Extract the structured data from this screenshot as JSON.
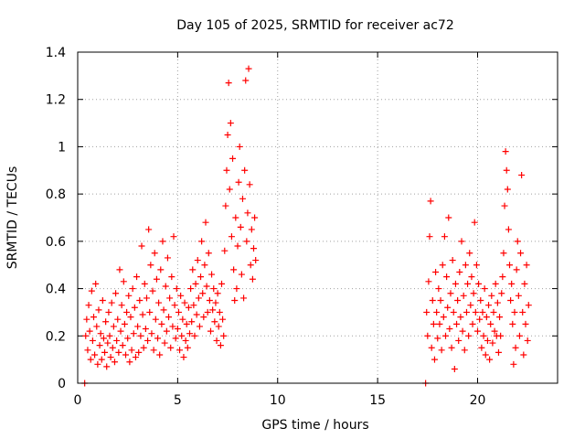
{
  "chart_data": {
    "type": "scatter",
    "title": "Day 105 of 2025, SRMTID for receiver ac72",
    "xlabel": "GPS time / hours",
    "ylabel": "SRMTID / TECUs",
    "xlim": [
      0,
      24
    ],
    "ylim": [
      0,
      1.4
    ],
    "grid": true,
    "marker": "+",
    "color": "#ff0000",
    "x_ticks": [
      {
        "value": 0,
        "label": "0"
      },
      {
        "value": 5,
        "label": "5"
      },
      {
        "value": 10,
        "label": "10"
      },
      {
        "value": 15,
        "label": "15"
      },
      {
        "value": 20,
        "label": "20"
      }
    ],
    "y_ticks": [
      {
        "value": 0,
        "label": "0"
      },
      {
        "value": 0.2,
        "label": "0.2"
      },
      {
        "value": 0.4,
        "label": "0.4"
      },
      {
        "value": 0.6,
        "label": "0.6"
      },
      {
        "value": 0.8,
        "label": "0.8"
      },
      {
        "value": 1.0,
        "label": "1"
      },
      {
        "value": 1.2,
        "label": "1.2"
      },
      {
        "value": 1.4,
        "label": "1.4"
      }
    ],
    "series": [
      {
        "name": "SRMTID",
        "points": [
          [
            0.35,
            0.0
          ],
          [
            0.4,
            0.2
          ],
          [
            0.45,
            0.27
          ],
          [
            0.5,
            0.14
          ],
          [
            0.55,
            0.33
          ],
          [
            0.6,
            0.22
          ],
          [
            0.65,
            0.1
          ],
          [
            0.7,
            0.39
          ],
          [
            0.75,
            0.18
          ],
          [
            0.8,
            0.28
          ],
          [
            0.85,
            0.12
          ],
          [
            0.9,
            0.42
          ],
          [
            0.95,
            0.24
          ],
          [
            1.0,
            0.08
          ],
          [
            1.05,
            0.31
          ],
          [
            1.1,
            0.16
          ],
          [
            1.15,
            0.21
          ],
          [
            1.2,
            0.1
          ],
          [
            1.25,
            0.35
          ],
          [
            1.3,
            0.19
          ],
          [
            1.35,
            0.13
          ],
          [
            1.4,
            0.26
          ],
          [
            1.45,
            0.07
          ],
          [
            1.5,
            0.17
          ],
          [
            1.55,
            0.3
          ],
          [
            1.6,
            0.2
          ],
          [
            1.65,
            0.11
          ],
          [
            1.7,
            0.34
          ],
          [
            1.75,
            0.15
          ],
          [
            1.8,
            0.24
          ],
          [
            1.85,
            0.09
          ],
          [
            1.9,
            0.38
          ],
          [
            1.95,
            0.18
          ],
          [
            2.0,
            0.27
          ],
          [
            2.05,
            0.13
          ],
          [
            2.1,
            0.48
          ],
          [
            2.15,
            0.22
          ],
          [
            2.2,
            0.33
          ],
          [
            2.25,
            0.16
          ],
          [
            2.3,
            0.43
          ],
          [
            2.35,
            0.25
          ],
          [
            2.4,
            0.12
          ],
          [
            2.45,
            0.3
          ],
          [
            2.5,
            0.19
          ],
          [
            2.55,
            0.37
          ],
          [
            2.6,
            0.09
          ],
          [
            2.65,
            0.28
          ],
          [
            2.7,
            0.14
          ],
          [
            2.75,
            0.4
          ],
          [
            2.8,
            0.21
          ],
          [
            2.85,
            0.32
          ],
          [
            2.9,
            0.11
          ],
          [
            2.95,
            0.45
          ],
          [
            3.0,
            0.24
          ],
          [
            3.05,
            0.13
          ],
          [
            3.1,
            0.35
          ],
          [
            3.15,
            0.2
          ],
          [
            3.2,
            0.58
          ],
          [
            3.25,
            0.29
          ],
          [
            3.3,
            0.15
          ],
          [
            3.35,
            0.42
          ],
          [
            3.4,
            0.23
          ],
          [
            3.45,
            0.36
          ],
          [
            3.5,
            0.18
          ],
          [
            3.55,
            0.65
          ],
          [
            3.6,
            0.3
          ],
          [
            3.65,
            0.5
          ],
          [
            3.7,
            0.21
          ],
          [
            3.75,
            0.39
          ],
          [
            3.8,
            0.14
          ],
          [
            3.85,
            0.55
          ],
          [
            3.9,
            0.27
          ],
          [
            3.95,
            0.44
          ],
          [
            4.0,
            0.19
          ],
          [
            4.05,
            0.34
          ],
          [
            4.1,
            0.12
          ],
          [
            4.15,
            0.48
          ],
          [
            4.2,
            0.25
          ],
          [
            4.25,
            0.6
          ],
          [
            4.3,
            0.31
          ],
          [
            4.35,
            0.17
          ],
          [
            4.4,
            0.41
          ],
          [
            4.45,
            0.22
          ],
          [
            4.5,
            0.53
          ],
          [
            4.55,
            0.28
          ],
          [
            4.6,
            0.36
          ],
          [
            4.65,
            0.15
          ],
          [
            4.7,
            0.45
          ],
          [
            4.75,
            0.24
          ],
          [
            4.8,
            0.62
          ],
          [
            4.85,
            0.33
          ],
          [
            4.9,
            0.19
          ],
          [
            4.95,
            0.4
          ],
          [
            5.0,
            0.23
          ],
          [
            5.05,
            0.3
          ],
          [
            5.1,
            0.14
          ],
          [
            5.15,
            0.37
          ],
          [
            5.2,
            0.2
          ],
          [
            5.25,
            0.27
          ],
          [
            5.3,
            0.11
          ],
          [
            5.35,
            0.34
          ],
          [
            5.4,
            0.18
          ],
          [
            5.45,
            0.25
          ],
          [
            5.5,
            0.15
          ],
          [
            5.55,
            0.32
          ],
          [
            5.6,
            0.21
          ],
          [
            5.65,
            0.4
          ],
          [
            5.7,
            0.26
          ],
          [
            5.75,
            0.48
          ],
          [
            5.8,
            0.33
          ],
          [
            5.85,
            0.2
          ],
          [
            5.9,
            0.42
          ],
          [
            5.95,
            0.29
          ],
          [
            6.0,
            0.52
          ],
          [
            6.05,
            0.36
          ],
          [
            6.1,
            0.24
          ],
          [
            6.15,
            0.45
          ],
          [
            6.2,
            0.6
          ],
          [
            6.25,
            0.38
          ],
          [
            6.3,
            0.28
          ],
          [
            6.35,
            0.5
          ],
          [
            6.4,
            0.68
          ],
          [
            6.45,
            0.41
          ],
          [
            6.5,
            0.3
          ],
          [
            6.55,
            0.55
          ],
          [
            6.6,
            0.35
          ],
          [
            6.65,
            0.22
          ],
          [
            6.7,
            0.46
          ],
          [
            6.75,
            0.31
          ],
          [
            6.8,
            0.4
          ],
          [
            6.85,
            0.26
          ],
          [
            6.9,
            0.34
          ],
          [
            6.95,
            0.18
          ],
          [
            7.0,
            0.38
          ],
          [
            7.05,
            0.24
          ],
          [
            7.1,
            0.3
          ],
          [
            7.15,
            0.16
          ],
          [
            7.2,
            0.42
          ],
          [
            7.25,
            0.27
          ],
          [
            7.3,
            0.2
          ],
          [
            7.35,
            0.56
          ],
          [
            7.4,
            0.75
          ],
          [
            7.45,
            0.9
          ],
          [
            7.5,
            1.05
          ],
          [
            7.55,
            1.27
          ],
          [
            7.6,
            0.82
          ],
          [
            7.65,
            1.1
          ],
          [
            7.7,
            0.62
          ],
          [
            7.75,
            0.95
          ],
          [
            7.8,
            0.48
          ],
          [
            7.85,
            0.35
          ],
          [
            7.9,
            0.7
          ],
          [
            7.95,
            0.4
          ],
          [
            8.0,
            0.58
          ],
          [
            8.05,
            0.85
          ],
          [
            8.1,
            1.0
          ],
          [
            8.15,
            0.66
          ],
          [
            8.2,
            0.46
          ],
          [
            8.25,
            0.78
          ],
          [
            8.3,
            0.36
          ],
          [
            8.35,
            0.9
          ],
          [
            8.4,
            1.28
          ],
          [
            8.45,
            0.6
          ],
          [
            8.5,
            0.72
          ],
          [
            8.55,
            1.33
          ],
          [
            8.6,
            0.84
          ],
          [
            8.65,
            0.5
          ],
          [
            8.7,
            0.65
          ],
          [
            8.75,
            0.44
          ],
          [
            8.8,
            0.57
          ],
          [
            8.85,
            0.7
          ],
          [
            8.9,
            0.52
          ],
          [
            17.4,
            0.0
          ],
          [
            17.45,
            0.3
          ],
          [
            17.5,
            0.2
          ],
          [
            17.55,
            0.43
          ],
          [
            17.6,
            0.62
          ],
          [
            17.65,
            0.77
          ],
          [
            17.7,
            0.15
          ],
          [
            17.75,
            0.35
          ],
          [
            17.8,
            0.25
          ],
          [
            17.85,
            0.1
          ],
          [
            17.9,
            0.47
          ],
          [
            17.95,
            0.3
          ],
          [
            18.0,
            0.19
          ],
          [
            18.05,
            0.4
          ],
          [
            18.1,
            0.25
          ],
          [
            18.15,
            0.35
          ],
          [
            18.2,
            0.14
          ],
          [
            18.25,
            0.5
          ],
          [
            18.3,
            0.28
          ],
          [
            18.35,
            0.62
          ],
          [
            18.4,
            0.2
          ],
          [
            18.45,
            0.45
          ],
          [
            18.5,
            0.32
          ],
          [
            18.55,
            0.7
          ],
          [
            18.6,
            0.23
          ],
          [
            18.65,
            0.38
          ],
          [
            18.7,
            0.15
          ],
          [
            18.75,
            0.52
          ],
          [
            18.8,
            0.3
          ],
          [
            18.85,
            0.06
          ],
          [
            18.9,
            0.42
          ],
          [
            18.95,
            0.25
          ],
          [
            19.0,
            0.35
          ],
          [
            19.05,
            0.18
          ],
          [
            19.1,
            0.47
          ],
          [
            19.15,
            0.28
          ],
          [
            19.2,
            0.6
          ],
          [
            19.25,
            0.22
          ],
          [
            19.3,
            0.37
          ],
          [
            19.35,
            0.14
          ],
          [
            19.4,
            0.5
          ],
          [
            19.45,
            0.3
          ],
          [
            19.5,
            0.42
          ],
          [
            19.55,
            0.2
          ],
          [
            19.6,
            0.55
          ],
          [
            19.65,
            0.33
          ],
          [
            19.7,
            0.45
          ],
          [
            19.75,
            0.25
          ],
          [
            19.8,
            0.38
          ],
          [
            19.85,
            0.68
          ],
          [
            19.9,
            0.3
          ],
          [
            19.95,
            0.5
          ],
          [
            20.0,
            0.22
          ],
          [
            20.05,
            0.42
          ],
          [
            20.1,
            0.27
          ],
          [
            20.15,
            0.35
          ],
          [
            20.2,
            0.15
          ],
          [
            20.25,
            0.3
          ],
          [
            20.3,
            0.2
          ],
          [
            20.35,
            0.4
          ],
          [
            20.4,
            0.12
          ],
          [
            20.45,
            0.28
          ],
          [
            20.5,
            0.18
          ],
          [
            20.55,
            0.33
          ],
          [
            20.6,
            0.1
          ],
          [
            20.65,
            0.25
          ],
          [
            20.7,
            0.37
          ],
          [
            20.75,
            0.17
          ],
          [
            20.8,
            0.3
          ],
          [
            20.85,
            0.22
          ],
          [
            20.9,
            0.42
          ],
          [
            20.95,
            0.2
          ],
          [
            21.0,
            0.34
          ],
          [
            21.05,
            0.13
          ],
          [
            21.1,
            0.28
          ],
          [
            21.15,
            0.2
          ],
          [
            21.2,
            0.38
          ],
          [
            21.25,
            0.45
          ],
          [
            21.3,
            0.55
          ],
          [
            21.35,
            0.75
          ],
          [
            21.4,
            0.98
          ],
          [
            21.45,
            0.9
          ],
          [
            21.5,
            0.82
          ],
          [
            21.55,
            0.65
          ],
          [
            21.6,
            0.5
          ],
          [
            21.65,
            0.35
          ],
          [
            21.7,
            0.42
          ],
          [
            21.75,
            0.25
          ],
          [
            21.8,
            0.08
          ],
          [
            21.85,
            0.3
          ],
          [
            21.9,
            0.15
          ],
          [
            21.95,
            0.48
          ],
          [
            22.0,
            0.6
          ],
          [
            22.05,
            0.37
          ],
          [
            22.1,
            0.2
          ],
          [
            22.15,
            0.55
          ],
          [
            22.2,
            0.88
          ],
          [
            22.25,
            0.3
          ],
          [
            22.3,
            0.12
          ],
          [
            22.35,
            0.42
          ],
          [
            22.4,
            0.25
          ],
          [
            22.45,
            0.5
          ],
          [
            22.5,
            0.18
          ],
          [
            22.55,
            0.33
          ]
        ]
      }
    ]
  }
}
